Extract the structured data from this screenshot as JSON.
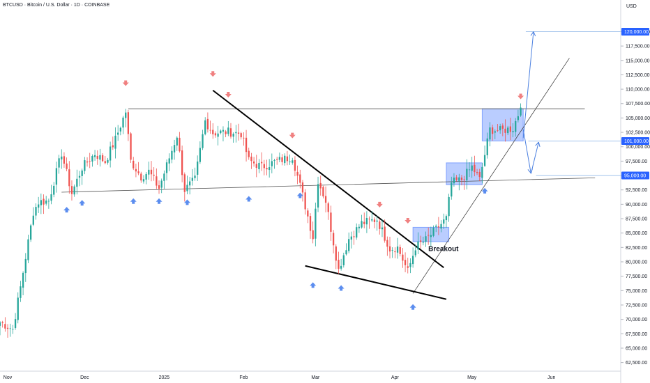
{
  "header": {
    "title": "BTCUSD · Bitcoin / U.S. Dollar · 1D · COINBASE"
  },
  "colors": {
    "up": "#26a69a",
    "down": "#ef5350",
    "price_label": "#2962ff",
    "box": "#2962ff",
    "arrow_down": "#f08080",
    "arrow_up": "#5b8def"
  },
  "chart_data": {
    "type": "candlestick",
    "title": "BTCUSD · Bitcoin / U.S. Dollar · 1D · COINBASE",
    "currency_label": "USD",
    "y_ticks": [
      62500,
      65000,
      67500,
      70000,
      72500,
      75000,
      77500,
      80000,
      82500,
      85000,
      87500,
      90000,
      92500,
      95000,
      97500,
      100000,
      102500,
      105000,
      107500,
      110000,
      112500,
      115000,
      117500,
      120000
    ],
    "y_tick_labels": [
      "62,500.00",
      "65,000.00",
      "67,500.00",
      "70,000.00",
      "72,500.00",
      "75,000.00",
      "77,500.00",
      "80,000.00",
      "82,500.00",
      "85,000.00",
      "87,500.00",
      "90,000.00",
      "92,500.00",
      "95,000.00",
      "97,500.00",
      "100,000.00",
      "102,500.00",
      "105,000.00",
      "107,500.00",
      "110,000.00",
      "112,500.00",
      "115,000.00",
      "117,500.00",
      "120,000.00"
    ],
    "ylim": [
      61000,
      125500
    ],
    "x_labels": [
      {
        "label": "Nov",
        "date": "2024-11-01"
      },
      {
        "label": "Dec",
        "date": "2024-12-01"
      },
      {
        "label": "2025",
        "date": "2025-01-01"
      },
      {
        "label": "Feb",
        "date": "2025-02-01"
      },
      {
        "label": "Mar",
        "date": "2025-03-01"
      },
      {
        "label": "Apr",
        "date": "2025-04-01"
      },
      {
        "label": "May",
        "date": "2025-05-01"
      },
      {
        "label": "Jun",
        "date": "2025-06-01"
      }
    ],
    "xlim": [
      "2024-10-29",
      "2025-06-28"
    ],
    "price_labels": [
      {
        "value": 120000,
        "text": "120,000.00"
      },
      {
        "value": 101000,
        "text": "101,000.00"
      },
      {
        "value": 95000,
        "text": "95,000.00"
      }
    ],
    "anchors": [
      {
        "date": "2024-10-29",
        "close": 69500
      },
      {
        "date": "2024-11-03",
        "close": 68300
      },
      {
        "date": "2024-11-06",
        "close": 75600
      },
      {
        "date": "2024-11-11",
        "close": 88700
      },
      {
        "date": "2024-11-13",
        "close": 90400
      },
      {
        "date": "2024-11-17",
        "close": 90600
      },
      {
        "date": "2024-11-22",
        "close": 98900
      },
      {
        "date": "2024-11-26",
        "close": 91900
      },
      {
        "date": "2024-11-30",
        "close": 96400
      },
      {
        "date": "2024-12-05",
        "close": 98800
      },
      {
        "date": "2024-12-09",
        "close": 97400
      },
      {
        "date": "2024-12-13",
        "close": 101300
      },
      {
        "date": "2024-12-17",
        "close": 106100
      },
      {
        "date": "2024-12-19",
        "close": 97500
      },
      {
        "date": "2024-12-23",
        "close": 94800
      },
      {
        "date": "2024-12-26",
        "close": 95700
      },
      {
        "date": "2024-12-30",
        "close": 92800
      },
      {
        "date": "2025-01-06",
        "close": 102000
      },
      {
        "date": "2025-01-09",
        "close": 92500
      },
      {
        "date": "2025-01-13",
        "close": 94300
      },
      {
        "date": "2025-01-17",
        "close": 104500
      },
      {
        "date": "2025-01-20",
        "close": 102400
      },
      {
        "date": "2025-01-26",
        "close": 102600
      },
      {
        "date": "2025-01-31",
        "close": 102300
      },
      {
        "date": "2025-02-03",
        "close": 97600
      },
      {
        "date": "2025-02-08",
        "close": 96500
      },
      {
        "date": "2025-02-14",
        "close": 97500
      },
      {
        "date": "2025-02-20",
        "close": 98300
      },
      {
        "date": "2025-02-24",
        "close": 91500
      },
      {
        "date": "2025-02-28",
        "close": 84300
      },
      {
        "date": "2025-03-02",
        "close": 94200
      },
      {
        "date": "2025-03-05",
        "close": 90600
      },
      {
        "date": "2025-03-10",
        "close": 78600
      },
      {
        "date": "2025-03-14",
        "close": 84000
      },
      {
        "date": "2025-03-19",
        "close": 86700
      },
      {
        "date": "2025-03-25",
        "close": 87400
      },
      {
        "date": "2025-03-30",
        "close": 82300
      },
      {
        "date": "2025-04-02",
        "close": 82500
      },
      {
        "date": "2025-04-06",
        "close": 78300
      },
      {
        "date": "2025-04-09",
        "close": 82600
      },
      {
        "date": "2025-04-13",
        "close": 83800
      },
      {
        "date": "2025-04-21",
        "close": 87500
      },
      {
        "date": "2025-04-23",
        "close": 93700
      },
      {
        "date": "2025-04-27",
        "close": 94300
      },
      {
        "date": "2025-05-01",
        "close": 96500
      },
      {
        "date": "2025-05-04",
        "close": 94300
      },
      {
        "date": "2025-05-08",
        "close": 103000
      },
      {
        "date": "2025-05-12",
        "close": 102800
      },
      {
        "date": "2025-05-17",
        "close": 103200
      },
      {
        "date": "2025-05-20",
        "close": 106800
      }
    ],
    "annotations": {
      "resistance_line": {
        "from": {
          "date": "2024-12-18",
          "price": 106600
        },
        "to": {
          "date": "2025-06-14",
          "price": 106600
        }
      },
      "support_line": {
        "from": {
          "date": "2024-11-22",
          "price": 92100
        },
        "to": {
          "date": "2025-06-18",
          "price": 94600
        }
      },
      "falling_trendline": {
        "from": {
          "date": "2025-01-20",
          "price": 109800
        },
        "to": {
          "date": "2025-04-20",
          "price": 79000
        }
      },
      "lower_wedge_line": {
        "from": {
          "date": "2025-02-25",
          "price": 79300
        },
        "to": {
          "date": "2025-04-21",
          "price": 73500
        }
      },
      "rising_trendline": {
        "from": {
          "date": "2025-04-08",
          "price": 74500
        },
        "to": {
          "date": "2025-06-08",
          "price": 115400
        }
      },
      "level_120k": {
        "from": {
          "date": "2025-05-22",
          "price": 120000
        },
        "to": {
          "date": "2025-06-28",
          "price": 120000
        }
      },
      "level_101k": {
        "from": {
          "date": "2025-05-23",
          "price": 101000
        },
        "to": {
          "date": "2025-06-28",
          "price": 101000
        }
      },
      "level_95k": {
        "from": {
          "date": "2025-05-26",
          "price": 95000
        },
        "to": {
          "date": "2025-06-28",
          "price": 95000
        }
      },
      "boxes": [
        {
          "from": "2025-04-08",
          "to": "2025-04-22",
          "top": 86000,
          "bottom": 83500
        },
        {
          "from": "2025-04-21",
          "to": "2025-05-05",
          "top": 97200,
          "bottom": 93400
        },
        {
          "from": "2025-05-05",
          "to": "2025-05-21",
          "top": 106600,
          "bottom": 101000
        }
      ],
      "breakout_label": {
        "text": "Breakout",
        "date": "2025-04-14",
        "price": 81900
      },
      "down_markers": [
        {
          "date": "2024-12-17",
          "price": 110800
        },
        {
          "date": "2025-01-20",
          "price": 112400
        },
        {
          "date": "2025-01-26",
          "price": 108800
        },
        {
          "date": "2025-02-20",
          "price": 101700
        },
        {
          "date": "2025-03-26",
          "price": 89700
        },
        {
          "date": "2025-04-06",
          "price": 86900
        },
        {
          "date": "2025-05-20",
          "price": 108500
        }
      ],
      "up_markers": [
        {
          "date": "2024-11-24",
          "price": 89300
        },
        {
          "date": "2024-11-30",
          "price": 90500
        },
        {
          "date": "2024-12-20",
          "price": 90800
        },
        {
          "date": "2024-12-30",
          "price": 90800
        },
        {
          "date": "2025-01-10",
          "price": 90600
        },
        {
          "date": "2025-02-03",
          "price": 91200
        },
        {
          "date": "2025-02-23",
          "price": 91800
        },
        {
          "date": "2025-02-28",
          "price": 76200
        },
        {
          "date": "2025-03-11",
          "price": 75700
        },
        {
          "date": "2025-04-08",
          "price": 72400
        },
        {
          "date": "2025-05-06",
          "price": 92600
        }
      ],
      "projection_arrows": [
        {
          "from": {
            "date": "2025-05-21",
            "price": 101500
          },
          "to": {
            "date": "2025-05-25",
            "price": 120000
          }
        },
        {
          "from": {
            "date": "2025-05-21",
            "price": 103000
          },
          "to": {
            "date": "2025-05-24",
            "price": 95400
          }
        },
        {
          "from": {
            "date": "2025-05-24",
            "price": 95300
          },
          "to": {
            "date": "2025-05-27",
            "price": 100800
          }
        }
      ]
    }
  }
}
